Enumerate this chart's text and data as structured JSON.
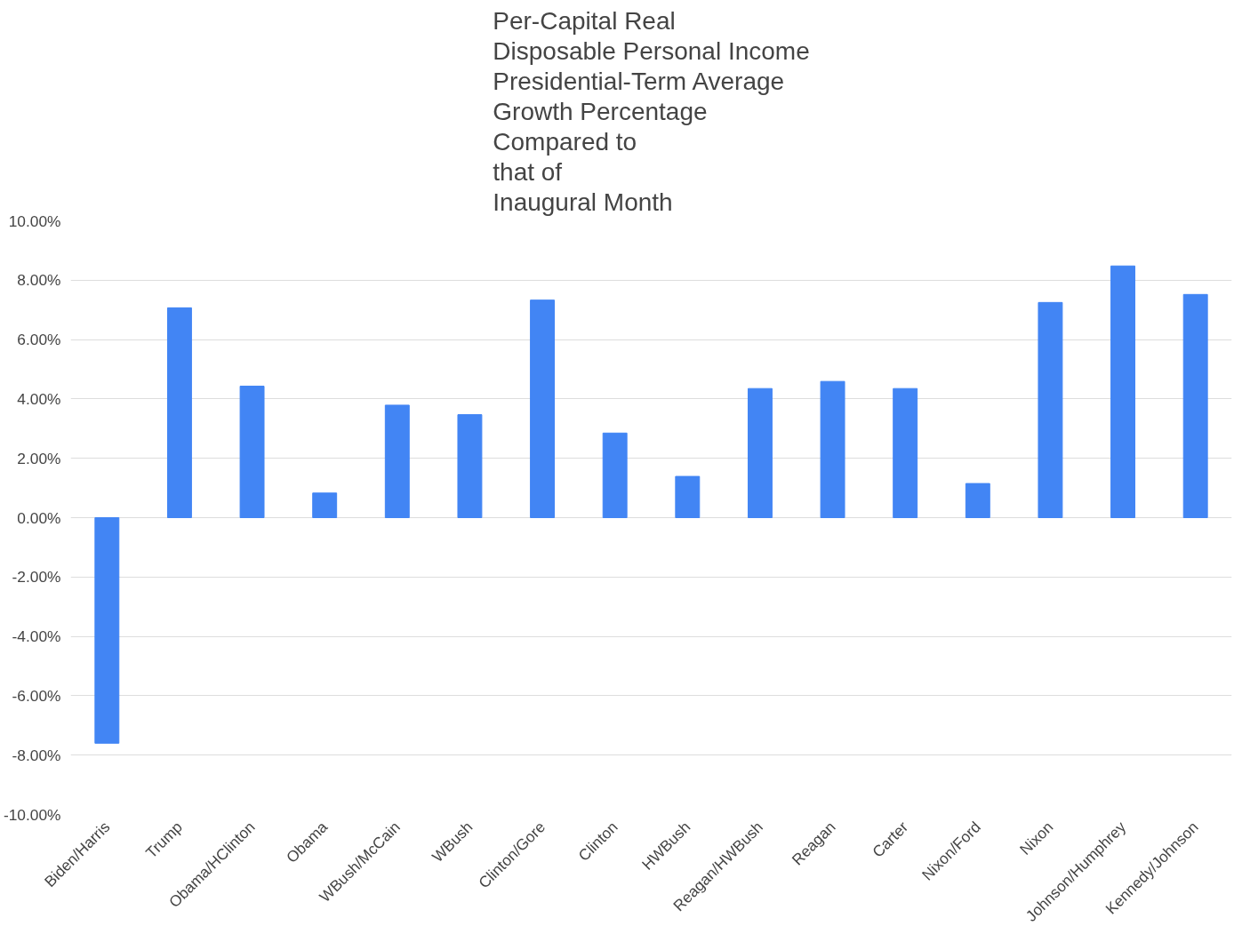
{
  "chart_data": {
    "type": "bar",
    "title": "Per-Capital Real\nDisposable Personal Income\nPresidential-Term Average\nGrowth Percentage\nCompared to\nthat of\nInaugural Month",
    "categories": [
      "Biden/Harris",
      "Trump",
      "Obama/HClinton",
      "Obama",
      "WBush/McCain",
      "WBush",
      "Clinton/Gore",
      "Clinton",
      "HWBush",
      "Reagan/HWBush",
      "Reagan",
      "Carter",
      "Nixon/Ford",
      "Nixon",
      "Johnson/Humphrey",
      "Kennedy/Johnson"
    ],
    "values": [
      -7.6,
      7.07,
      4.43,
      0.83,
      3.79,
      3.47,
      7.33,
      2.85,
      1.39,
      4.35,
      4.59,
      4.35,
      1.15,
      7.25,
      8.48,
      7.52
    ],
    "color": "#4285f4",
    "ylim": [
      -10,
      10
    ],
    "yticks": [
      {
        "value": -10,
        "label": "-10.00%"
      },
      {
        "value": -8,
        "label": "-8.00%"
      },
      {
        "value": -6,
        "label": "-6.00%"
      },
      {
        "value": -4,
        "label": "-4.00%"
      },
      {
        "value": -2,
        "label": "-2.00%"
      },
      {
        "value": 0,
        "label": "0.00%"
      },
      {
        "value": 2,
        "label": "2.00%"
      },
      {
        "value": 4,
        "label": "4.00%"
      },
      {
        "value": 6,
        "label": "6.00%"
      },
      {
        "value": 8,
        "label": "8.00%"
      },
      {
        "value": 10,
        "label": "10.00%"
      }
    ],
    "grid": "y"
  }
}
